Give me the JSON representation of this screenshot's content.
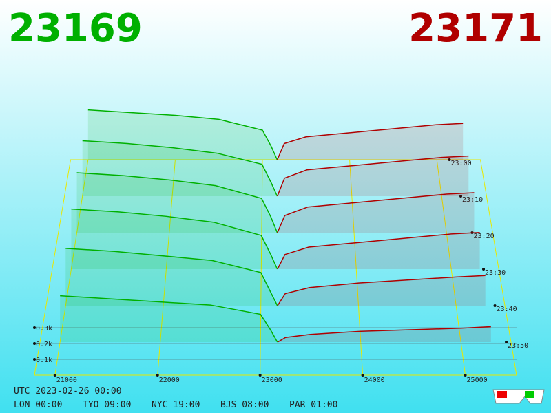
{
  "chart_data": {
    "type": "depth3d",
    "bid_price": 23169,
    "ask_price": 23171,
    "xlim": [
      20800,
      25500
    ],
    "xticks": [
      21000,
      22000,
      23000,
      24000,
      25000
    ],
    "zticks": [
      {
        "value": 0.1,
        "label": "0.1k"
      },
      {
        "value": 0.2,
        "label": "0.2k"
      },
      {
        "value": 0.3,
        "label": "0.3k"
      }
    ],
    "times": [
      "23:00",
      "23:10",
      "23:20",
      "23:30",
      "23:40",
      "23:50"
    ],
    "bids": {
      "color": "#00b000",
      "prices": [
        21000,
        21500,
        22000,
        22500,
        23000,
        23100,
        23169
      ],
      "values": [
        [
          0.37,
          0.35,
          0.33,
          0.3,
          0.22,
          0.1,
          0
        ],
        [
          0.4,
          0.38,
          0.35,
          0.31,
          0.23,
          0.1,
          0
        ],
        [
          0.42,
          0.4,
          0.37,
          0.33,
          0.24,
          0.11,
          0
        ],
        [
          0.41,
          0.39,
          0.36,
          0.32,
          0.23,
          0.1,
          0
        ],
        [
          0.38,
          0.36,
          0.33,
          0.3,
          0.22,
          0.09,
          0
        ],
        [
          0.3,
          0.28,
          0.26,
          0.24,
          0.18,
          0.08,
          0
        ]
      ]
    },
    "asks": {
      "color": "#b00000",
      "prices": [
        23171,
        23250,
        23500,
        24000,
        24500,
        25000,
        25300
      ],
      "values": [
        [
          0,
          0.12,
          0.17,
          0.2,
          0.23,
          0.26,
          0.27
        ],
        [
          0,
          0.13,
          0.19,
          0.22,
          0.25,
          0.28,
          0.29
        ],
        [
          0,
          0.12,
          0.18,
          0.21,
          0.24,
          0.27,
          0.28
        ],
        [
          0,
          0.1,
          0.15,
          0.18,
          0.21,
          0.24,
          0.25
        ],
        [
          0,
          0.08,
          0.12,
          0.15,
          0.17,
          0.19,
          0.2
        ],
        [
          0,
          0.03,
          0.05,
          0.07,
          0.08,
          0.09,
          0.1
        ]
      ]
    }
  },
  "clock": {
    "utc": "UTC 2023-02-26 00:00",
    "zones": [
      "LON 00:00",
      "TYO 09:00",
      "NYC 19:00",
      "BJS 08:00",
      "PAR 01:00"
    ]
  }
}
